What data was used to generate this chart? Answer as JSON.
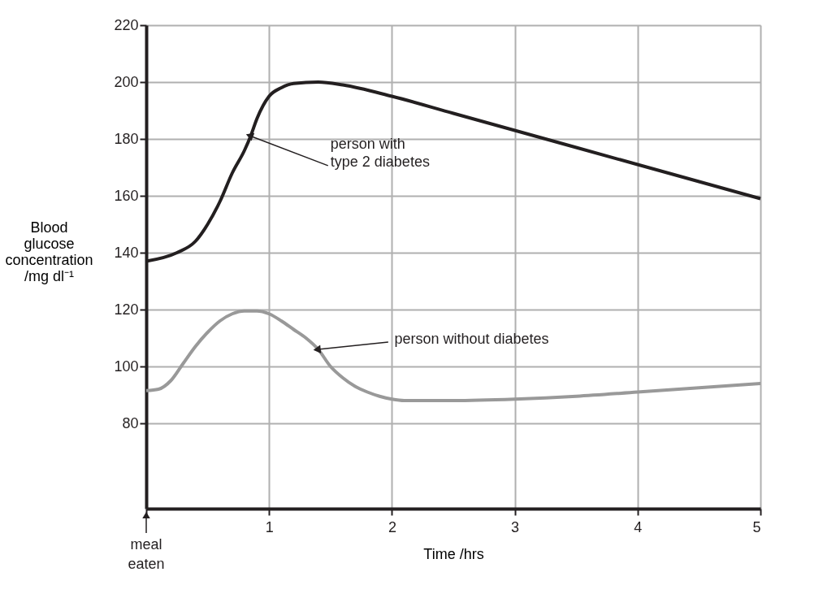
{
  "chart_data": {
    "type": "line",
    "xlabel": "Time /hrs",
    "ylabel": "Blood\nglucose\nconcentration\n/mg dl⁻¹",
    "xlim": [
      0,
      5
    ],
    "ylim": [
      50,
      220
    ],
    "xticks": [
      {
        "value": 0,
        "label": null
      },
      1,
      2,
      3,
      4,
      5
    ],
    "yticks": [
      80,
      100,
      120,
      140,
      160,
      180,
      200,
      220
    ],
    "grid": true,
    "marker": "none",
    "line_style": "solid",
    "series": [
      {
        "color": "#231f20",
        "x": [
          0,
          0.25,
          0.4,
          0.5,
          0.6,
          0.7,
          0.8,
          0.85,
          0.9,
          1.0,
          1.1,
          1.2,
          1.4,
          1.6,
          2.0,
          2.5,
          3,
          3.5,
          4,
          4.5,
          5
        ],
        "values": [
          137,
          140,
          144,
          150,
          158,
          168,
          176,
          181,
          187,
          195,
          198,
          199.5,
          200,
          199,
          195,
          189,
          183,
          177,
          171,
          165,
          159
        ]
      },
      {
        "color": "#999999",
        "x": [
          0,
          0.1,
          0.2,
          0.3,
          0.4,
          0.5,
          0.6,
          0.7,
          0.8,
          0.9,
          1.0,
          1.1,
          1.2,
          1.3,
          1.4,
          1.5,
          1.6,
          1.7,
          1.8,
          1.9,
          2.0,
          2.1,
          2.5,
          3,
          3.5,
          4,
          4.5,
          5
        ],
        "values": [
          91.5,
          92,
          95,
          101,
          107,
          112,
          116,
          118.5,
          119.5,
          119.5,
          118.5,
          116,
          113,
          110,
          106,
          100,
          96,
          93,
          91,
          89.5,
          88.5,
          88,
          88,
          88.5,
          89.5,
          91,
          92.5,
          94
        ]
      }
    ],
    "annotations": [
      {
        "text": "person with\ntype 2 diabetes",
        "x": 0.85,
        "y": 181
      },
      {
        "text": "person without diabetes",
        "x": 1.4,
        "y": 106
      },
      "meal\neaten"
    ]
  }
}
